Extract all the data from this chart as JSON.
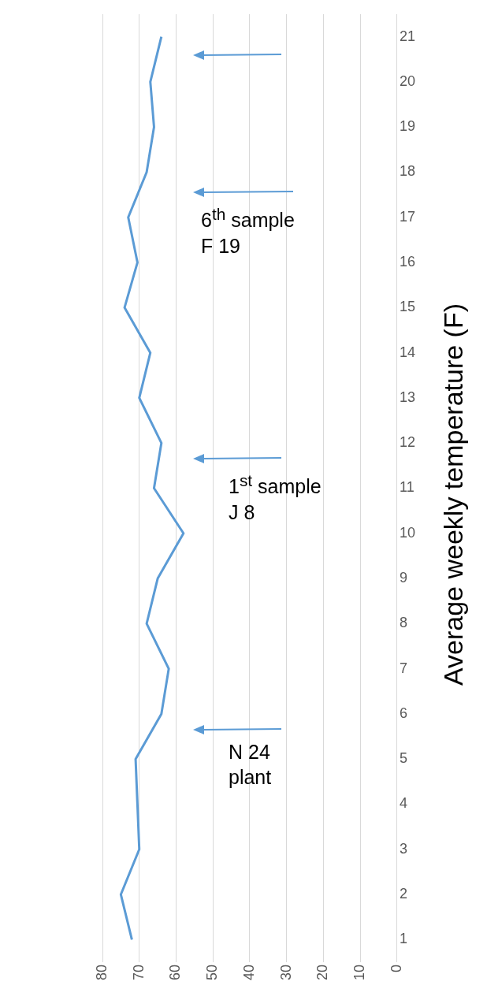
{
  "chart_data": {
    "type": "line",
    "orientation": "horizontal",
    "ylabel": "Average weekly temperature (F)",
    "categories": [
      "21",
      "20",
      "19",
      "18",
      "17",
      "16",
      "15",
      "14",
      "13",
      "12",
      "11",
      "10",
      "9",
      "8",
      "7",
      "6",
      "5",
      "4",
      "3",
      "2",
      "1"
    ],
    "series": [
      {
        "color": "#5b9bd5",
        "values": [
          64,
          67,
          66,
          68,
          73,
          70.5,
          74,
          67,
          70,
          64,
          66,
          58,
          65,
          68,
          62,
          64,
          71,
          70.5,
          70,
          75,
          72
        ]
      }
    ],
    "xlim": [
      80,
      0
    ],
    "xticks": [
      0,
      10,
      20,
      30,
      40,
      50,
      60,
      70,
      80
    ],
    "grid": "x",
    "legend": false,
    "marker": "none",
    "annotations": [
      "6$^{th}$ sample\nF 19",
      "1$^{st}$ sample\nJ 8",
      "N 24\nplant"
    ]
  }
}
